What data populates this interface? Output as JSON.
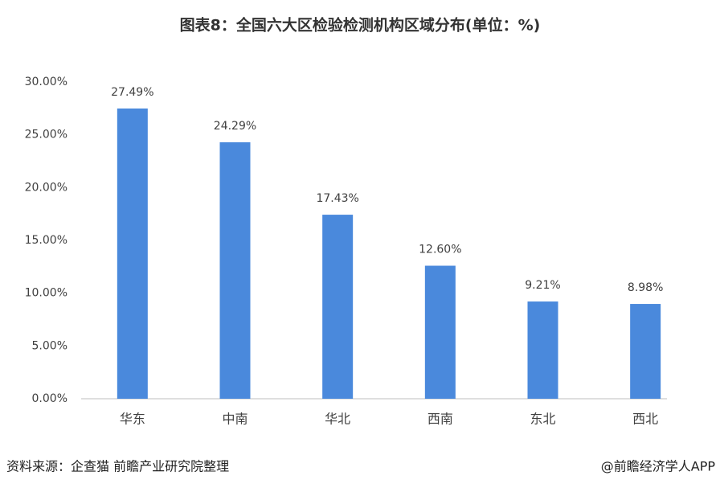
{
  "chart_data": {
    "type": "bar",
    "title": "图表8：全国六大区检验检测机构区域分布(单位：%)",
    "categories": [
      "华东",
      "中南",
      "华北",
      "西南",
      "东北",
      "西北"
    ],
    "values": [
      27.49,
      24.29,
      17.43,
      12.6,
      9.21,
      8.98
    ],
    "value_labels": [
      "27.49%",
      "24.29%",
      "17.43%",
      "12.60%",
      "9.21%",
      "8.98%"
    ],
    "color": "#4a89dc",
    "ylim": [
      0,
      30
    ],
    "yticks": [
      {
        "value": 0,
        "label": "0.00%"
      },
      {
        "value": 5,
        "label": "5.00%"
      },
      {
        "value": 10,
        "label": "10.00%"
      },
      {
        "value": 15,
        "label": "15.00%"
      },
      {
        "value": 20,
        "label": "20.00%"
      },
      {
        "value": 25,
        "label": "25.00%"
      },
      {
        "value": 30,
        "label": "30.00%"
      }
    ],
    "grid": false
  },
  "source": "资料来源：企查猫 前瞻产业研究院整理",
  "credit": "@前瞻经济学人APP"
}
